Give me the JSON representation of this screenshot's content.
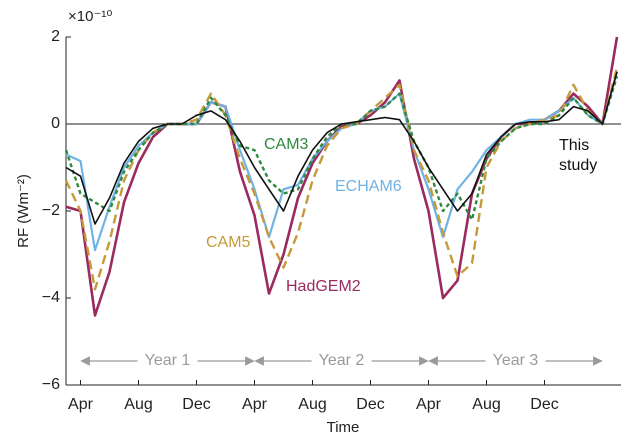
{
  "chart_data": {
    "type": "line",
    "y_label": "RF (Wm⁻²)",
    "x_label": "Time",
    "y_scale_label": "×10⁻¹⁰",
    "x": [
      0,
      1,
      2,
      3,
      4,
      5,
      6,
      7,
      8,
      9,
      10,
      11,
      12,
      13,
      14,
      15,
      16,
      17,
      18,
      19,
      20,
      21,
      22,
      23,
      24,
      25,
      26,
      27,
      28,
      29,
      30,
      31,
      32,
      33,
      34,
      35,
      36,
      37,
      38
    ],
    "xlim": [
      0,
      38
    ],
    "xticks": [
      {
        "value": 1,
        "label": "Apr"
      },
      {
        "value": 5,
        "label": "Aug"
      },
      {
        "value": 9,
        "label": "Dec"
      },
      {
        "value": 13,
        "label": "Apr"
      },
      {
        "value": 17,
        "label": "Aug"
      },
      {
        "value": 21,
        "label": "Dec"
      },
      {
        "value": 25,
        "label": "Apr"
      },
      {
        "value": 29,
        "label": "Aug"
      },
      {
        "value": 33,
        "label": "Dec"
      }
    ],
    "ylim": [
      -6,
      2
    ],
    "yticks": [
      {
        "value": -6,
        "label": "−6"
      },
      {
        "value": -4,
        "label": "−4"
      },
      {
        "value": -2,
        "label": "−2"
      },
      0,
      2
    ],
    "annotations": [
      "Year 1",
      "Year 2",
      "Year 3"
    ],
    "series": [
      {
        "name": "HadGEM2",
        "color": "#9b2a5e",
        "values": [
          -1.9,
          -2.0,
          -4.4,
          -3.4,
          -1.8,
          -0.9,
          -0.3,
          0,
          0,
          0,
          0.5,
          0.4,
          -1.1,
          -2.1,
          -3.9,
          -3.0,
          -1.7,
          -0.9,
          -0.4,
          -0.05,
          0,
          0.2,
          0.5,
          1.0,
          -0.8,
          -2.0,
          -4.0,
          -3.6,
          -1.6,
          -0.8,
          -0.3,
          0,
          0,
          0.1,
          0.3,
          0.7,
          0.4,
          0,
          2.0
        ]
      },
      {
        "name": "ECHAM6",
        "color": "#6fb3e6",
        "values": [
          -0.7,
          -0.85,
          -2.9,
          -1.9,
          -1.0,
          -0.5,
          -0.2,
          0,
          0,
          0,
          0.5,
          0.4,
          -0.6,
          -1.5,
          -2.6,
          -1.5,
          -1.4,
          -0.8,
          -0.4,
          -0.1,
          0,
          0.3,
          0.4,
          0.7,
          -0.6,
          -1.5,
          -2.6,
          -1.5,
          -1.1,
          -0.6,
          -0.3,
          0,
          0.1,
          0.1,
          0.3,
          0.6,
          0.2,
          0,
          1.2
        ]
      },
      {
        "name": "CAM5",
        "color": "#c49a3a",
        "values": [
          -1.3,
          -2.0,
          -3.8,
          -2.7,
          -1.3,
          -0.6,
          -0.2,
          0,
          0,
          0.1,
          0.7,
          0.2,
          -0.8,
          -1.6,
          -2.6,
          -3.3,
          -2.5,
          -1.3,
          -0.5,
          -0.1,
          0,
          0.3,
          0.6,
          0.9,
          -0.6,
          -1.3,
          -2.5,
          -3.5,
          -3.2,
          -1.0,
          -0.4,
          -0.1,
          0,
          0.1,
          0.2,
          0.9,
          0.3,
          0,
          1.3
        ]
      },
      {
        "name": "CAM3",
        "color": "#2d8a3e",
        "values": [
          -0.6,
          -1.6,
          -1.8,
          -2.0,
          -1.1,
          -0.6,
          -0.2,
          0,
          0,
          0,
          0.6,
          0.2,
          -0.5,
          -0.6,
          -1.3,
          -1.6,
          -1.5,
          -0.8,
          -0.3,
          0,
          0,
          0.3,
          0.4,
          0.7,
          -0.4,
          -1.0,
          -2.0,
          -1.6,
          -2.2,
          -0.8,
          -0.4,
          -0.1,
          0,
          0,
          0.2,
          0.6,
          0.2,
          0,
          1.1
        ]
      },
      {
        "name": "This study",
        "color": "#111111",
        "values": [
          -1.0,
          -1.2,
          -2.3,
          -1.7,
          -0.9,
          -0.4,
          -0.1,
          0,
          0,
          0.2,
          0.3,
          0.1,
          -0.4,
          -1.0,
          -1.5,
          -2.0,
          -1.2,
          -0.6,
          -0.2,
          0,
          0.05,
          0.1,
          0.15,
          0.1,
          -0.4,
          -1.0,
          -1.5,
          -2.0,
          -1.6,
          -0.7,
          -0.3,
          0,
          0.05,
          0.05,
          0.1,
          0.4,
          0.3,
          0,
          1.2
        ]
      }
    ]
  }
}
